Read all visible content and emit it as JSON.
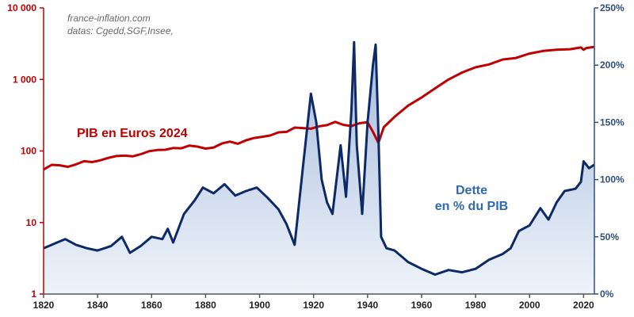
{
  "chart_data": {
    "type": "line",
    "source_lines": [
      "france-inflation.com",
      "datas: Cgedd,SGF,Insee,"
    ],
    "x_ticks": [
      "1820",
      "1840",
      "1860",
      "1880",
      "1900",
      "1920",
      "1940",
      "1960",
      "1980",
      "2000",
      "2020"
    ],
    "y_left_ticks": [
      "1",
      "10",
      "100",
      "1 000",
      "10 000"
    ],
    "y_right_ticks": [
      "0%",
      "50%",
      "100%",
      "150%",
      "200%",
      "250%"
    ],
    "xlim": [
      1820,
      2024
    ],
    "y_left": {
      "scale": "log",
      "range": [
        1,
        10000
      ],
      "color": "#c00000"
    },
    "y_right": {
      "scale": "linear",
      "range": [
        0,
        250
      ],
      "unit": "%",
      "color": "#1f3a6e"
    },
    "grid": false,
    "series": [
      {
        "name": "PIB en Euros 2024",
        "axis": "left",
        "color": "#c00000",
        "x": [
          1820,
          1823,
          1826,
          1829,
          1832,
          1835,
          1838,
          1841,
          1844,
          1847,
          1850,
          1853,
          1856,
          1859,
          1862,
          1865,
          1868,
          1871,
          1874,
          1877,
          1880,
          1883,
          1886,
          1889,
          1892,
          1895,
          1898,
          1901,
          1904,
          1907,
          1910,
          1913,
          1916,
          1919,
          1922,
          1925,
          1928,
          1931,
          1934,
          1937,
          1940,
          1942,
          1944,
          1946,
          1950,
          1955,
          1960,
          1965,
          1970,
          1975,
          1980,
          1985,
          1990,
          1995,
          2000,
          2005,
          2010,
          2015,
          2019,
          2020,
          2021,
          2024
        ],
        "values": [
          55,
          64,
          63,
          60,
          65,
          72,
          70,
          74,
          80,
          85,
          86,
          84,
          90,
          99,
          103,
          104,
          110,
          109,
          119,
          115,
          108,
          112,
          127,
          135,
          126,
          141,
          152,
          158,
          165,
          182,
          185,
          212,
          209,
          205,
          221,
          230,
          255,
          232,
          223,
          244,
          252,
          185,
          130,
          215,
          300,
          430,
          560,
          750,
          1000,
          1250,
          1480,
          1620,
          1900,
          2000,
          2300,
          2500,
          2600,
          2650,
          2800,
          2600,
          2750,
          2850
        ]
      },
      {
        "name": "Dette en % du PIB",
        "axis": "right",
        "color": "#0d2a66",
        "fill": "#9fb6d9",
        "x": [
          1820,
          1822,
          1825,
          1828,
          1832,
          1836,
          1840,
          1845,
          1849,
          1852,
          1856,
          1860,
          1864,
          1866,
          1868,
          1872,
          1876,
          1879,
          1883,
          1887,
          1891,
          1895,
          1899,
          1903,
          1907,
          1910,
          1913,
          1916,
          1919,
          1921,
          1923,
          1925,
          1927,
          1930,
          1932,
          1934,
          1935,
          1936,
          1938,
          1940,
          1942,
          1943,
          1944,
          1945,
          1947,
          1950,
          1955,
          1960,
          1965,
          1970,
          1975,
          1980,
          1985,
          1990,
          1993,
          1996,
          2000,
          2004,
          2007,
          2010,
          2013,
          2017,
          2019,
          2020,
          2022,
          2024
        ],
        "values": [
          40,
          42,
          45,
          48,
          43,
          40,
          38,
          42,
          50,
          36,
          42,
          50,
          48,
          57,
          45,
          70,
          82,
          93,
          88,
          96,
          86,
          90,
          93,
          84,
          74,
          61,
          43,
          110,
          175,
          150,
          100,
          80,
          70,
          130,
          85,
          160,
          220,
          130,
          70,
          150,
          200,
          218,
          140,
          50,
          40,
          38,
          28,
          22,
          17,
          21,
          19,
          22,
          30,
          35,
          40,
          55,
          60,
          75,
          65,
          80,
          90,
          92,
          98,
          116,
          110,
          113
        ]
      }
    ],
    "series_labels": [
      {
        "series": 0,
        "lines": [
          "PIB en Euros 2024"
        ]
      },
      {
        "series": 1,
        "lines": [
          "Dette",
          "en % du PIB"
        ]
      }
    ]
  }
}
